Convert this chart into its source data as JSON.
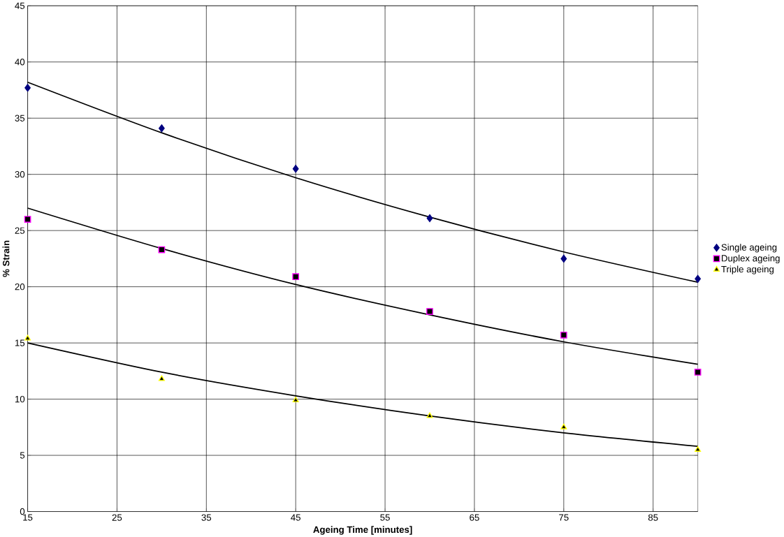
{
  "chart_data": {
    "type": "scatter",
    "xlabel": "Ageing Time [minutes]",
    "ylabel": "% Strain",
    "x": [
      15,
      30,
      45,
      60,
      75,
      90
    ],
    "series": [
      {
        "name": "Single ageing",
        "color": "#000080",
        "marker": "diamond",
        "values": [
          37.7,
          34.1,
          30.5,
          26.1,
          22.5,
          20.7
        ]
      },
      {
        "name": "Duplex ageing",
        "color": "#ff00ff",
        "marker": "square",
        "values": [
          26.0,
          23.3,
          20.9,
          17.8,
          15.7,
          12.4
        ]
      },
      {
        "name": "Triple ageing",
        "color": "#ffff00",
        "marker": "triangle",
        "values": [
          15.4,
          11.8,
          9.9,
          8.5,
          7.5,
          5.5
        ]
      },
      {
        "type": "line",
        "color": "#000000",
        "marker": "none",
        "x": [
          15,
          30,
          45,
          60,
          75,
          90
        ],
        "values": [
          38.2,
          33.7,
          29.7,
          26.2,
          23.1,
          20.4
        ]
      },
      {
        "type": "line",
        "color": "#000000",
        "marker": "none",
        "x": [
          15,
          30,
          45,
          60,
          75,
          90
        ],
        "values": [
          27.0,
          23.4,
          20.2,
          17.5,
          15.1,
          13.1
        ]
      },
      {
        "type": "line",
        "color": "#000000",
        "marker": "none",
        "x": [
          15,
          30,
          45,
          60,
          75,
          90
        ],
        "values": [
          15.0,
          12.4,
          10.3,
          8.5,
          7.0,
          5.8
        ]
      }
    ],
    "xlim": [
      15,
      90
    ],
    "xticks": [
      15,
      25,
      35,
      45,
      55,
      65,
      75,
      85
    ],
    "ylim": [
      0,
      45
    ],
    "yticks": [
      0,
      5,
      10,
      15,
      20,
      25,
      30,
      35,
      40,
      45
    ],
    "grid": true,
    "legend": "right"
  }
}
